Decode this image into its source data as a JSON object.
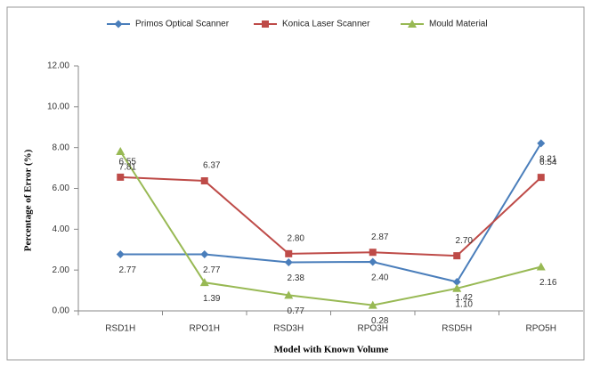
{
  "chart_data": {
    "type": "line",
    "x_label": "Model with Known Volume",
    "y_label": "Percentage of Error (%)",
    "categories": [
      "RSD1H",
      "RPO1H",
      "RSD3H",
      "RPO3H",
      "RSD5H",
      "RPO5H"
    ],
    "series": [
      {
        "name": "Primos Optical Scanner",
        "color": "#4a7ebb",
        "marker": "diamond",
        "values": [
          2.77,
          2.77,
          2.38,
          2.4,
          1.42,
          8.21
        ],
        "value_labels": [
          "2.77",
          "2.77",
          "2.38",
          "2.40",
          "1.42",
          "8.21"
        ]
      },
      {
        "name": "Konica Laser Scanner",
        "color": "#be4b48",
        "marker": "square",
        "values": [
          6.55,
          6.37,
          2.8,
          2.87,
          2.7,
          6.54
        ],
        "value_labels": [
          "6.55",
          "6.37",
          "2.80",
          "2.87",
          "2.70",
          "6.54"
        ]
      },
      {
        "name": "Mould Material",
        "color": "#98b954",
        "marker": "triangle",
        "values": [
          7.81,
          1.39,
          0.77,
          0.28,
          1.1,
          2.16
        ],
        "value_labels": [
          "7.81",
          "1.39",
          "0.77",
          "0.28",
          "1.10",
          "2.16"
        ]
      }
    ],
    "ylim": [
      0,
      12
    ],
    "yticks": [
      {
        "value": 0,
        "label": "0.00"
      },
      {
        "value": 2,
        "label": "2.00"
      },
      {
        "value": 4,
        "label": "4.00"
      },
      {
        "value": 6,
        "label": "6.00"
      },
      {
        "value": 8,
        "label": "8.00"
      },
      {
        "value": 10,
        "label": "10.00"
      },
      {
        "value": 12,
        "label": "12.00"
      }
    ],
    "legend": "top"
  }
}
